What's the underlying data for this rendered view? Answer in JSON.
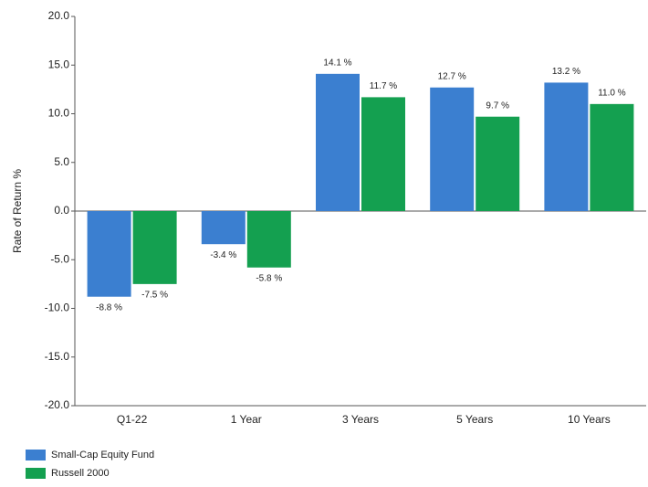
{
  "chart_data": {
    "type": "bar",
    "y_label": "Rate of Return %",
    "categories": [
      "Q1-22",
      "1 Year",
      "3 Years",
      "5 Years",
      "10 Years"
    ],
    "series": [
      {
        "name": "Small-Cap Equity Fund",
        "color": "#3b7fd0",
        "values": [
          -8.8,
          -3.4,
          14.1,
          12.7,
          13.2
        ],
        "value_labels": [
          "-8.8 %",
          "-3.4 %",
          "14.1 %",
          "12.7 %",
          "13.2 %"
        ]
      },
      {
        "name": "Russell 2000",
        "color": "#14a050",
        "values": [
          -7.5,
          -5.8,
          11.7,
          9.7,
          11.0
        ],
        "value_labels": [
          "-7.5 %",
          "-5.8 %",
          "11.7 %",
          "9.7 %",
          "11.0 %"
        ]
      }
    ],
    "ylim": [
      -20,
      20
    ],
    "yticks": [
      {
        "value": -20,
        "label": "-20.0"
      },
      {
        "value": -15,
        "label": "-15.0"
      },
      {
        "value": -10,
        "label": "-10.0"
      },
      {
        "value": -5,
        "label": "-5.0"
      },
      {
        "value": 0,
        "label": "0.0"
      },
      {
        "value": 5,
        "label": "5.0"
      },
      {
        "value": 10,
        "label": "10.0"
      },
      {
        "value": 15,
        "label": "15.0"
      },
      {
        "value": 20,
        "label": "20.0"
      }
    ],
    "grid": false,
    "legend": "bottom-left"
  }
}
